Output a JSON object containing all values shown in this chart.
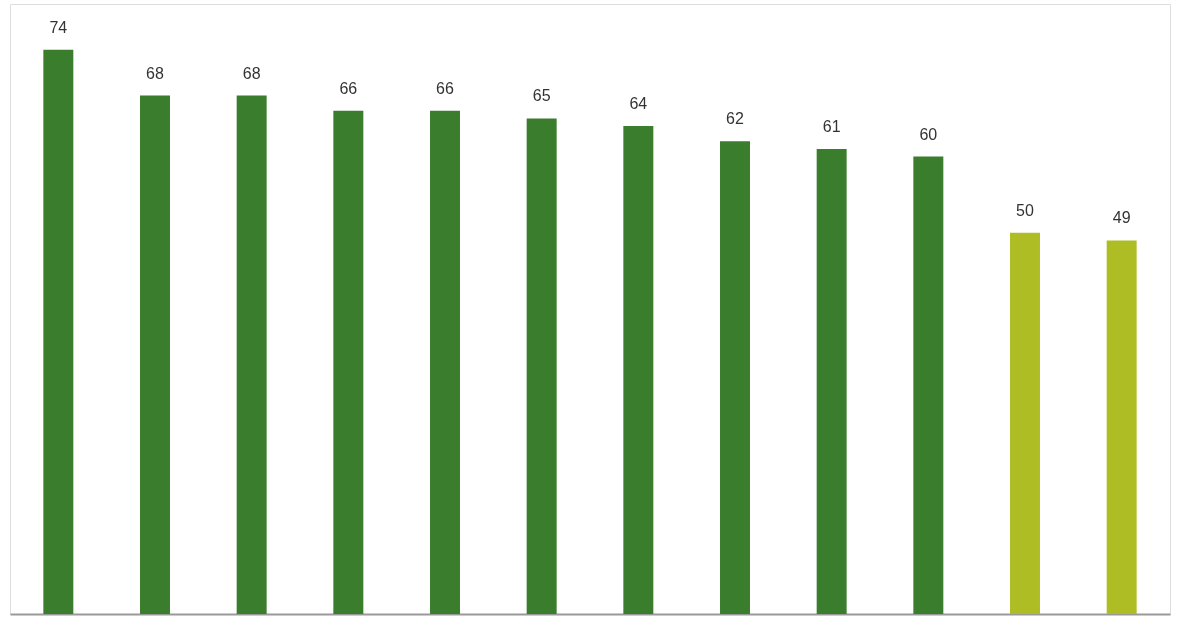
{
  "chart_data": {
    "type": "bar",
    "categories": [
      null,
      null,
      null,
      null,
      null,
      null,
      null,
      null,
      null,
      null,
      null,
      null
    ],
    "values": [
      74,
      68,
      68,
      66,
      66,
      65,
      64,
      62,
      61,
      60,
      50,
      49
    ],
    "colors": [
      "#3a7d2c",
      "#3a7d2c",
      "#3a7d2c",
      "#3a7d2c",
      "#3a7d2c",
      "#3a7d2c",
      "#3a7d2c",
      "#3a7d2c",
      "#3a7d2c",
      "#3a7d2c",
      "#aebd23",
      "#aebd23"
    ],
    "ylim": [
      0,
      80
    ],
    "data_labels": true
  }
}
